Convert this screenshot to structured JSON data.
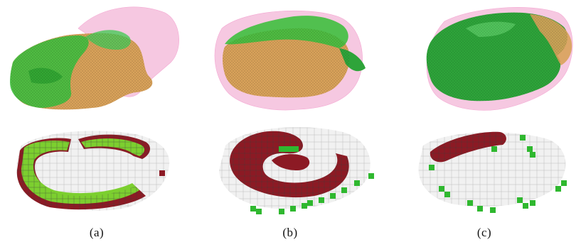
{
  "figure": {
    "captions": [
      "(a)",
      "(b)",
      "(c)"
    ]
  },
  "colors": {
    "membrane_pink": "#f4b6d8",
    "mesh_green": "#3fbf3f",
    "mesh_dark_green": "#1f9a2a",
    "mesh_orange": "#d9a25a",
    "voxel_red": "#8c1a24",
    "voxel_green": "#7ccf2f",
    "voxel_bright_green": "#2fb82f",
    "voxel_ghost": "#e6e6e6"
  }
}
